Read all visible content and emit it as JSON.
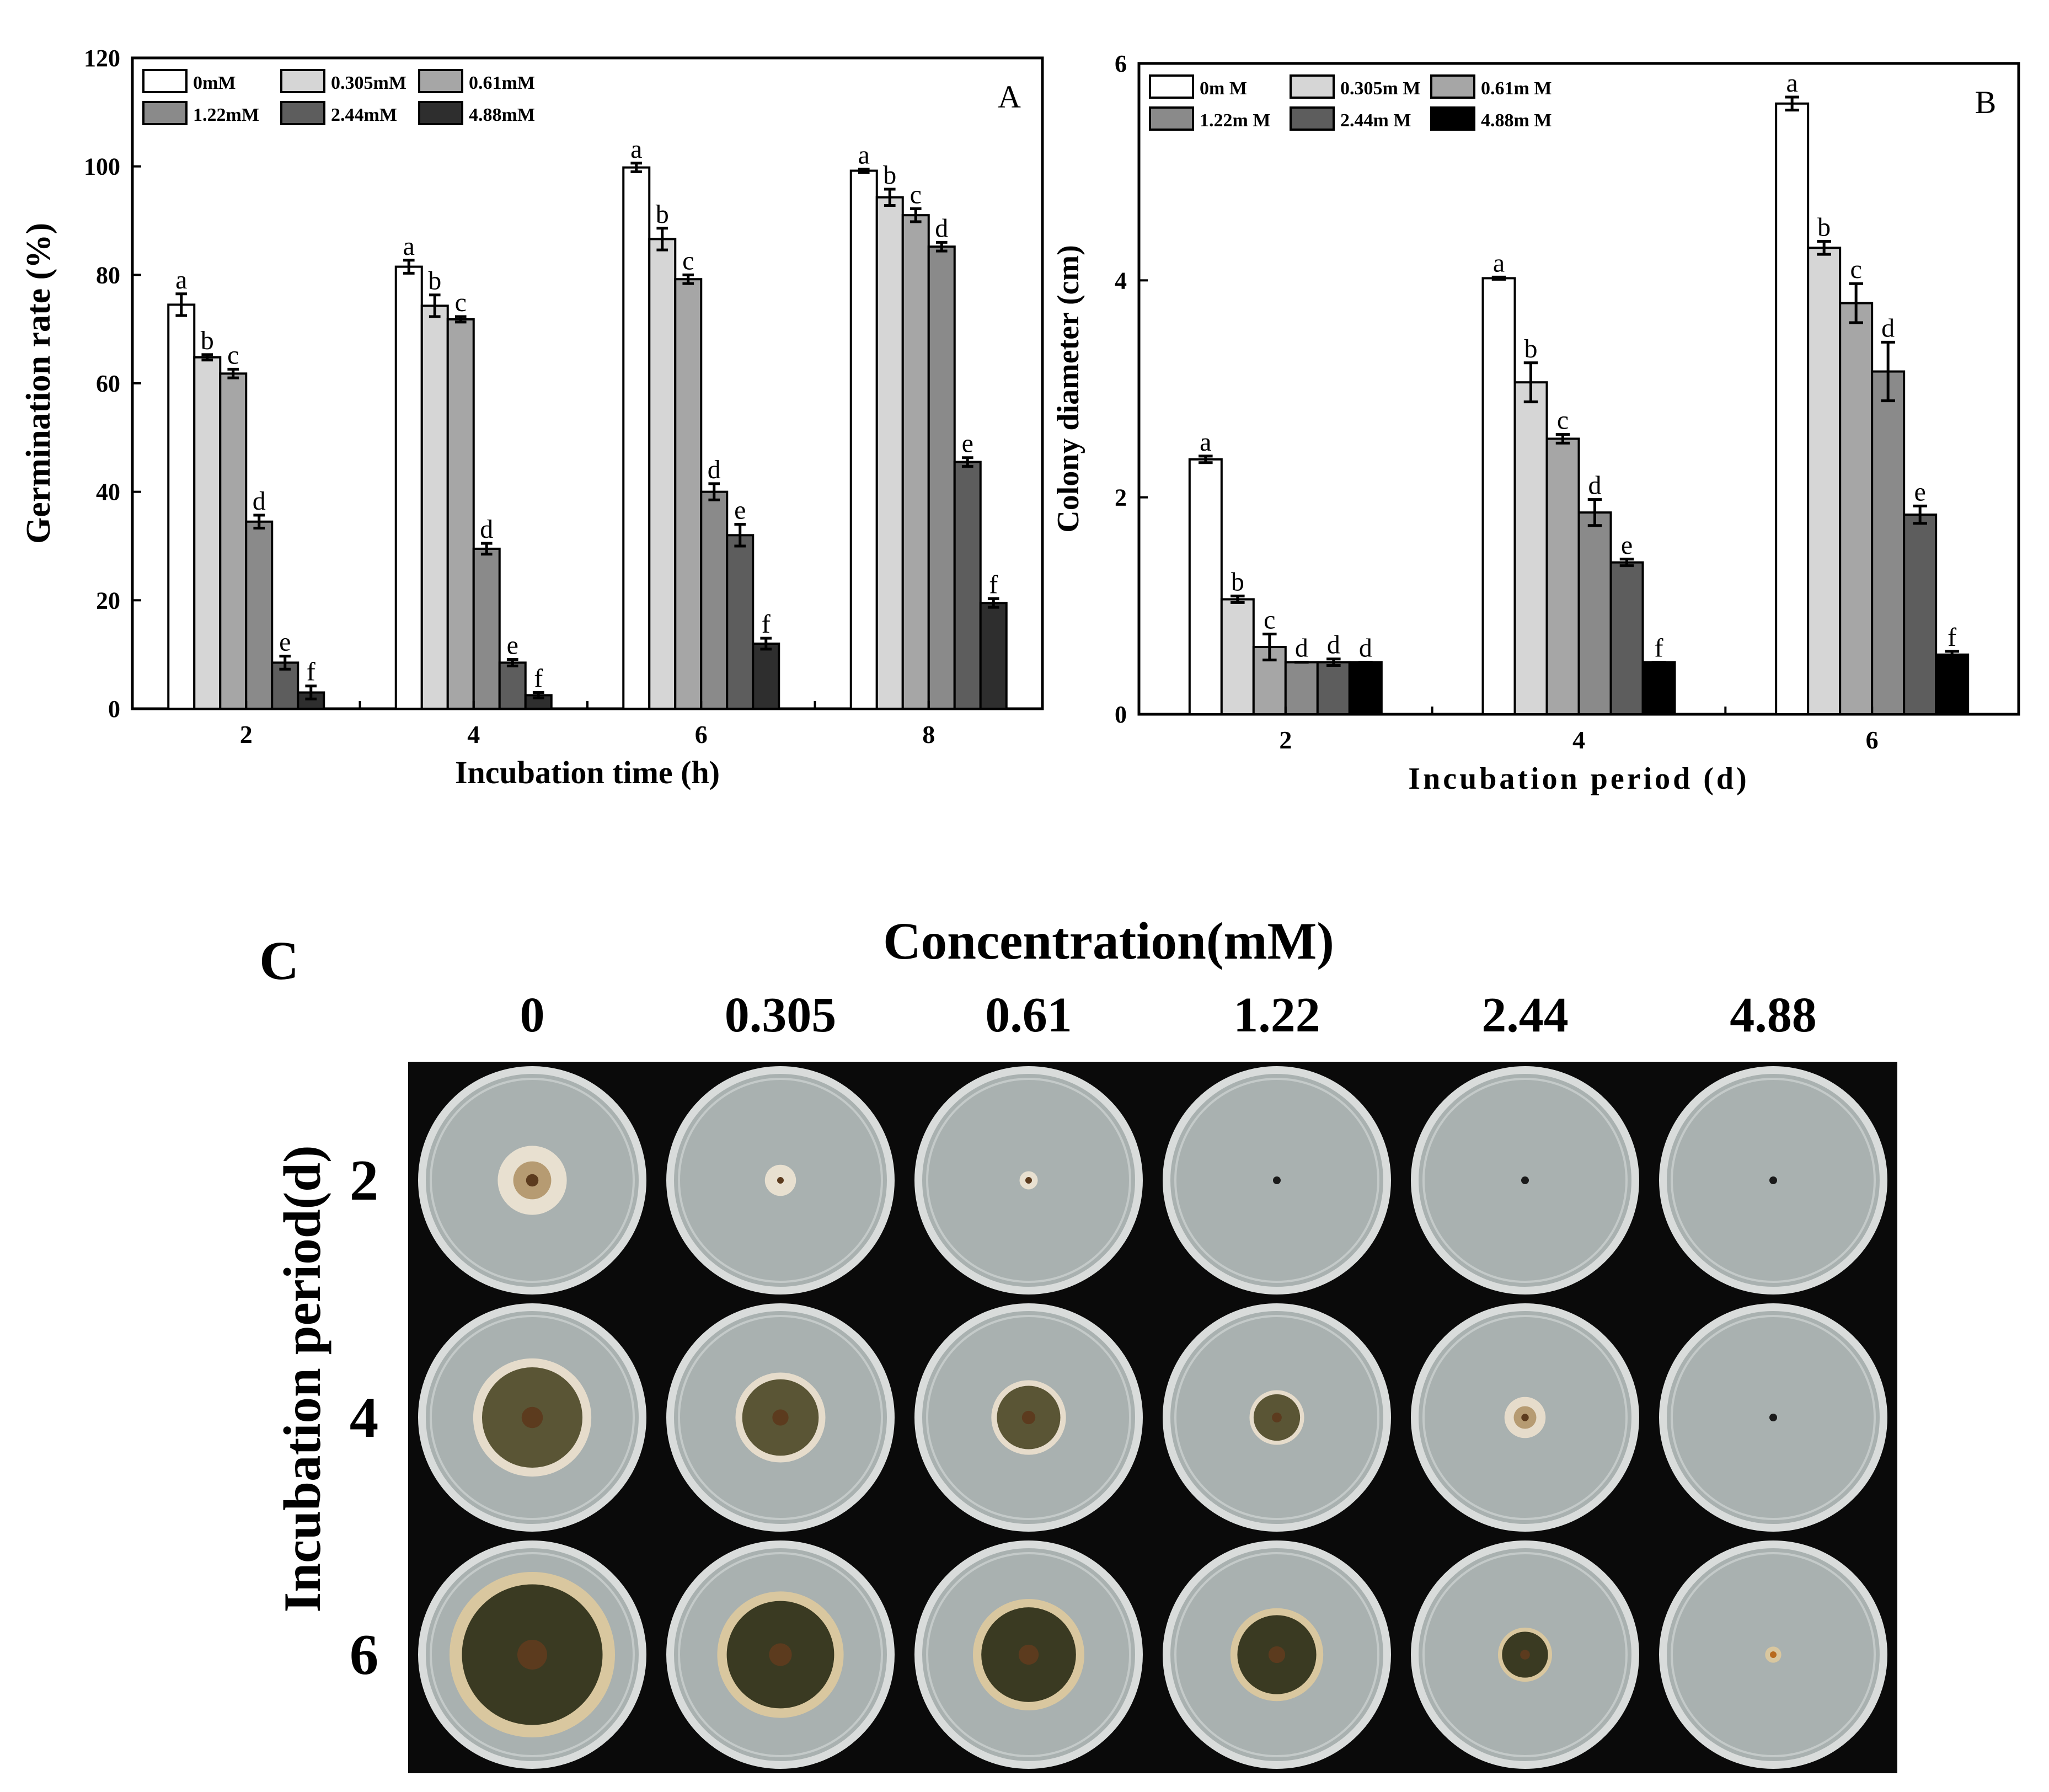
{
  "colors": {
    "series": [
      "#ffffff",
      "#d6d6d6",
      "#a6a6a6",
      "#8a8a8a",
      "#5d5d5d",
      "#2e2e2e"
    ],
    "series_b": [
      "#ffffff",
      "#d6d6d6",
      "#a6a6a6",
      "#8a8a8a",
      "#5d5d5d",
      "#000000"
    ],
    "axis": "#000000",
    "photo_background": "#0a0a0a",
    "plate_agar": "#a9b1b0",
    "plate_rim": "#d9dcdb"
  },
  "chart_data": [
    {
      "id": "A",
      "type": "bar",
      "panel_label": "A",
      "xlabel": "Incubation time (h)",
      "ylabel": "Germination rate (%)",
      "ylim": [
        0,
        120
      ],
      "yticks": [
        0,
        20,
        40,
        60,
        80,
        100,
        120
      ],
      "categories": [
        "2",
        "4",
        "6",
        "8"
      ],
      "legend_position": "top-left",
      "series": [
        {
          "name": "0mM",
          "values": [
            74.5,
            81.5,
            99.8,
            99.2
          ],
          "errors": [
            2.0,
            1.2,
            0.8,
            0.3
          ],
          "letters": [
            "a",
            "a",
            "a",
            "a"
          ]
        },
        {
          "name": "0.305mM",
          "values": [
            64.8,
            74.3,
            86.6,
            94.3
          ],
          "errors": [
            0.5,
            2.0,
            2.0,
            1.5
          ],
          "letters": [
            "b",
            "b",
            "b",
            "b"
          ]
        },
        {
          "name": "0.61mM",
          "values": [
            61.8,
            71.8,
            79.2,
            91.0
          ],
          "errors": [
            0.8,
            0.5,
            0.8,
            1.2
          ],
          "letters": [
            "c",
            "c",
            "c",
            "c"
          ]
        },
        {
          "name": "1.22mM",
          "values": [
            34.5,
            29.5,
            40.0,
            85.2
          ],
          "errors": [
            1.2,
            1.0,
            1.5,
            0.8
          ],
          "letters": [
            "d",
            "d",
            "d",
            "d"
          ]
        },
        {
          "name": "2.44mM",
          "values": [
            8.5,
            8.5,
            32.0,
            45.5
          ],
          "errors": [
            1.2,
            0.6,
            2.0,
            0.8
          ],
          "letters": [
            "e",
            "e",
            "e",
            "e"
          ]
        },
        {
          "name": "4.88mM",
          "values": [
            3.0,
            2.5,
            12.0,
            19.5
          ],
          "errors": [
            1.2,
            0.5,
            1.0,
            0.8
          ],
          "letters": [
            "f",
            "f",
            "f",
            "f"
          ]
        }
      ]
    },
    {
      "id": "B",
      "type": "bar",
      "panel_label": "B",
      "xlabel": "Incubation period (d)",
      "ylabel": "Colony diameter (cm)",
      "ylim": [
        0,
        6
      ],
      "yticks": [
        0,
        2,
        4,
        6
      ],
      "categories": [
        "2",
        "4",
        "6"
      ],
      "legend_position": "top-left",
      "series": [
        {
          "name": "0m M",
          "values": [
            2.35,
            4.02,
            5.63
          ],
          "errors": [
            0.03,
            0.01,
            0.06
          ],
          "letters": [
            "a",
            "a",
            "a"
          ]
        },
        {
          "name": "0.305m M",
          "values": [
            1.06,
            3.06,
            4.3
          ],
          "errors": [
            0.03,
            0.18,
            0.06
          ],
          "letters": [
            "b",
            "b",
            "b"
          ]
        },
        {
          "name": "0.61m M",
          "values": [
            0.62,
            2.54,
            3.79
          ],
          "errors": [
            0.12,
            0.04,
            0.18
          ],
          "letters": [
            "c",
            "c",
            "c"
          ]
        },
        {
          "name": "1.22m M",
          "values": [
            0.48,
            1.86,
            3.16
          ],
          "errors": [
            0.0,
            0.12,
            0.27
          ],
          "letters": [
            "d",
            "d",
            "d"
          ]
        },
        {
          "name": "2.44m M",
          "values": [
            0.48,
            1.4,
            1.84
          ],
          "errors": [
            0.03,
            0.03,
            0.08
          ],
          "letters": [
            "d",
            "e",
            "e"
          ]
        },
        {
          "name": "4.88m M",
          "values": [
            0.48,
            0.48,
            0.55
          ],
          "errors": [
            0.0,
            0.0,
            0.03
          ],
          "letters": [
            "d",
            "f",
            "f"
          ]
        }
      ]
    }
  ],
  "panel_c": {
    "label": "C",
    "column_header": "Concentration(mM)",
    "row_header": "Incubation period(d)",
    "concentrations": [
      "0",
      "0.305",
      "0.61",
      "1.22",
      "2.44",
      "4.88"
    ],
    "periods": [
      "2",
      "4",
      "6"
    ],
    "colony_diameter_cm": [
      [
        2.35,
        1.06,
        0.62,
        0.48,
        0.48,
        0.48
      ],
      [
        4.02,
        3.06,
        2.54,
        1.86,
        1.4,
        0.48
      ],
      [
        5.63,
        4.3,
        3.79,
        3.16,
        1.84,
        0.55
      ]
    ]
  }
}
